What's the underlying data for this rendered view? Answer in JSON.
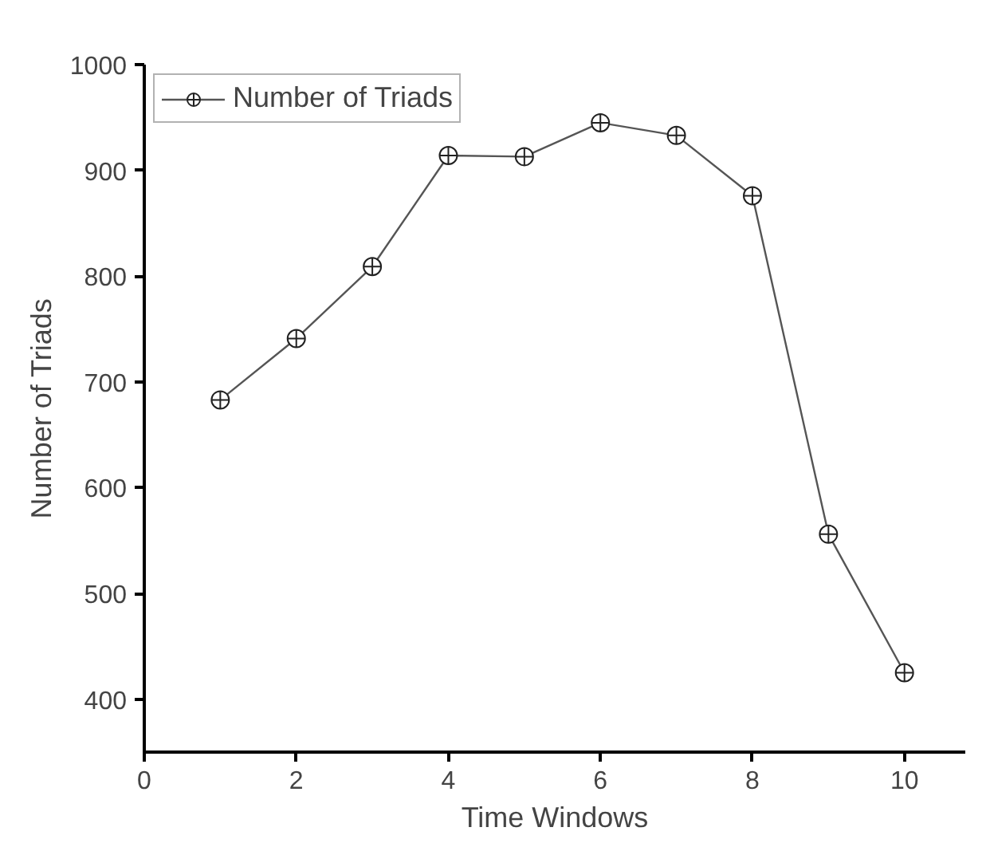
{
  "chart_data": {
    "type": "line",
    "xlabel": "Time Windows",
    "ylabel": "Number of Triads",
    "x": [
      1,
      2,
      3,
      4,
      5,
      6,
      7,
      8,
      9,
      10
    ],
    "series": [
      {
        "name": "Number of Triads",
        "color": "#555555",
        "values": [
          683,
          741,
          809,
          914,
          913,
          945,
          933,
          876,
          556,
          425
        ]
      }
    ],
    "xlim": [
      0,
      10.8
    ],
    "xticks": [
      0,
      2,
      4,
      6,
      8,
      10
    ],
    "ylim": [
      350,
      1000
    ],
    "yticks": [
      400,
      500,
      600,
      700,
      800,
      900,
      1000
    ],
    "grid": false,
    "legend": "top left",
    "marker": "circle",
    "line_style": "solid"
  }
}
